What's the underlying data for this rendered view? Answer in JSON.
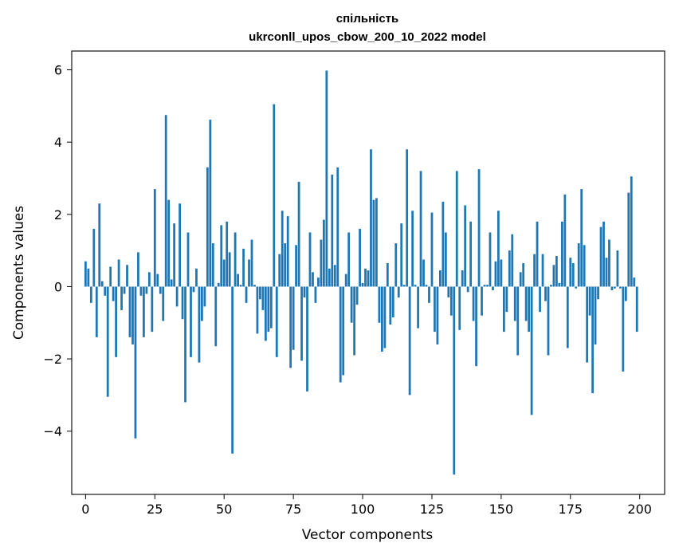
{
  "chart_data": {
    "type": "bar",
    "title_line1": "спільність",
    "title_line2": "ukrconll_upos_cbow_200_10_2022 model",
    "xlabel": "Vector components",
    "ylabel": "Components values",
    "xlim": [
      -5,
      209
    ],
    "ylim": [
      -5.75,
      6.52
    ],
    "x_ticks": [
      0,
      25,
      50,
      75,
      100,
      125,
      150,
      175,
      200
    ],
    "y_ticks": [
      -4,
      -2,
      0,
      2,
      4,
      6
    ],
    "bar_color": "#1f77b4",
    "values": [
      0.7,
      0.5,
      -0.45,
      1.6,
      -1.4,
      2.3,
      0.15,
      -0.25,
      -3.05,
      0.55,
      -0.4,
      -1.95,
      0.75,
      -0.65,
      -0.2,
      0.6,
      -1.4,
      -1.6,
      -4.2,
      0.95,
      -0.25,
      -1.4,
      -0.2,
      0.4,
      -1.25,
      2.7,
      0.35,
      -0.2,
      -0.95,
      4.75,
      2.4,
      0.2,
      1.75,
      -0.55,
      2.3,
      -0.9,
      -3.2,
      1.5,
      -1.95,
      -0.15,
      0.5,
      -2.1,
      -0.95,
      -0.55,
      3.3,
      4.62,
      1.2,
      -1.65,
      0.1,
      1.7,
      0.75,
      1.8,
      0.95,
      -4.62,
      1.5,
      0.35,
      0.05,
      1.05,
      -0.45,
      0.75,
      1.3,
      0.05,
      -1.3,
      -0.35,
      -0.65,
      -1.5,
      -1.25,
      -1.15,
      5.05,
      -1.95,
      0.9,
      2.1,
      1.2,
      1.95,
      -2.25,
      -1.75,
      1.15,
      2.9,
      -2.05,
      -0.3,
      -2.9,
      1.5,
      0.4,
      -0.45,
      0.25,
      1.3,
      1.85,
      5.98,
      0.5,
      3.1,
      0.6,
      3.3,
      -2.65,
      -2.45,
      0.35,
      1.5,
      -1.0,
      -1.9,
      -0.5,
      1.6,
      0.1,
      0.5,
      0.45,
      3.8,
      2.4,
      2.45,
      -1.0,
      -1.8,
      -1.7,
      0.65,
      -1.05,
      -0.85,
      1.2,
      -0.3,
      1.75,
      0.05,
      3.8,
      -3.0,
      2.1,
      0.05,
      -1.15,
      3.2,
      0.75,
      0.05,
      -0.45,
      2.05,
      -1.25,
      -1.6,
      0.45,
      2.35,
      1.5,
      -0.3,
      -0.8,
      -5.2,
      3.2,
      -1.2,
      0.45,
      2.25,
      -0.15,
      1.8,
      -0.95,
      -2.2,
      3.25,
      -0.8,
      0.05,
      0.05,
      1.5,
      -0.1,
      0.7,
      2.1,
      0.75,
      -1.25,
      -0.7,
      1.0,
      1.45,
      -0.95,
      -1.9,
      0.4,
      0.65,
      -0.95,
      -1.25,
      -3.55,
      0.9,
      1.8,
      -0.7,
      0.9,
      -0.4,
      -1.9,
      0.05,
      0.6,
      0.85,
      0.1,
      1.8,
      2.55,
      -1.7,
      0.8,
      0.65,
      -0.05,
      1.2,
      2.7,
      1.15,
      -2.1,
      -0.8,
      -2.95,
      -1.6,
      -0.35,
      1.65,
      1.8,
      0.8,
      1.3,
      -0.1,
      -0.05,
      1.0,
      -0.05,
      -2.35,
      -0.4,
      2.6,
      3.05,
      0.25,
      -1.25
    ]
  }
}
